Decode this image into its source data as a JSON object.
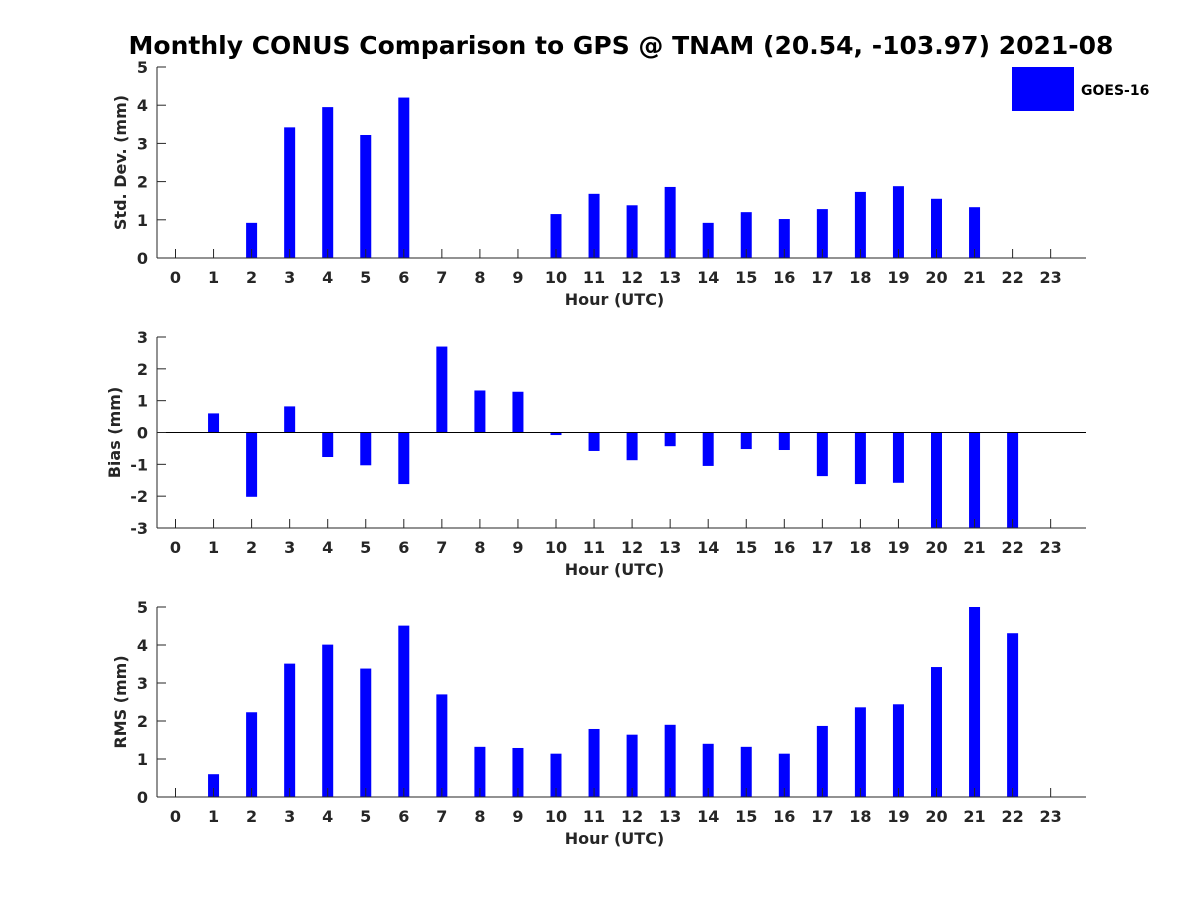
{
  "title": "Monthly CONUS Comparison to GPS @ TNAM (20.54, -103.97) 2021-08",
  "legend": {
    "label": "GOES-16",
    "color": "#0000ff",
    "placement": "top-right"
  },
  "chart_data": [
    {
      "type": "bar",
      "xlabel": "Hour (UTC)",
      "ylabel": "Std. Dev. (mm)",
      "ylim": [
        0,
        5
      ],
      "yticks": [
        0,
        1,
        2,
        3,
        4,
        5
      ],
      "categories": [
        "0",
        "1",
        "2",
        "3",
        "4",
        "5",
        "6",
        "7",
        "8",
        "9",
        "10",
        "11",
        "12",
        "13",
        "14",
        "15",
        "16",
        "17",
        "18",
        "19",
        "20",
        "21",
        "22",
        "23"
      ],
      "series": [
        {
          "name": "GOES-16",
          "color": "#0000ff",
          "values": [
            null,
            null,
            0.92,
            3.42,
            3.95,
            3.22,
            4.2,
            null,
            null,
            null,
            1.15,
            1.68,
            1.38,
            1.86,
            0.92,
            1.2,
            1.02,
            1.28,
            1.73,
            1.88,
            1.55,
            1.33,
            null,
            null
          ]
        }
      ]
    },
    {
      "type": "bar",
      "xlabel": "Hour (UTC)",
      "ylabel": "Bias (mm)",
      "ylim": [
        -3,
        3
      ],
      "yticks": [
        -3,
        -2,
        -1,
        0,
        1,
        2,
        3
      ],
      "zero_line": true,
      "categories": [
        "0",
        "1",
        "2",
        "3",
        "4",
        "5",
        "6",
        "7",
        "8",
        "9",
        "10",
        "11",
        "12",
        "13",
        "14",
        "15",
        "16",
        "17",
        "18",
        "19",
        "20",
        "21",
        "22",
        "23"
      ],
      "series": [
        {
          "name": "GOES-16",
          "color": "#0000ff",
          "values": [
            null,
            0.6,
            -2.02,
            0.82,
            -0.77,
            -1.03,
            -1.62,
            2.7,
            1.32,
            1.28,
            -0.08,
            -0.58,
            -0.87,
            -0.43,
            -1.05,
            -0.52,
            -0.55,
            -1.37,
            -1.62,
            -1.58,
            -3.0,
            -3.0,
            -3.0,
            null
          ]
        }
      ]
    },
    {
      "type": "bar",
      "xlabel": "Hour (UTC)",
      "ylabel": "RMS (mm)",
      "ylim": [
        0,
        5
      ],
      "yticks": [
        0,
        1,
        2,
        3,
        4,
        5
      ],
      "categories": [
        "0",
        "1",
        "2",
        "3",
        "4",
        "5",
        "6",
        "7",
        "8",
        "9",
        "10",
        "11",
        "12",
        "13",
        "14",
        "15",
        "16",
        "17",
        "18",
        "19",
        "20",
        "21",
        "22",
        "23"
      ],
      "series": [
        {
          "name": "GOES-16",
          "color": "#0000ff",
          "values": [
            null,
            0.6,
            2.23,
            3.51,
            4.01,
            3.38,
            4.51,
            2.7,
            1.32,
            1.29,
            1.14,
            1.79,
            1.64,
            1.9,
            1.4,
            1.32,
            1.14,
            1.87,
            2.36,
            2.44,
            3.42,
            5.0,
            4.31,
            null
          ]
        }
      ]
    }
  ]
}
